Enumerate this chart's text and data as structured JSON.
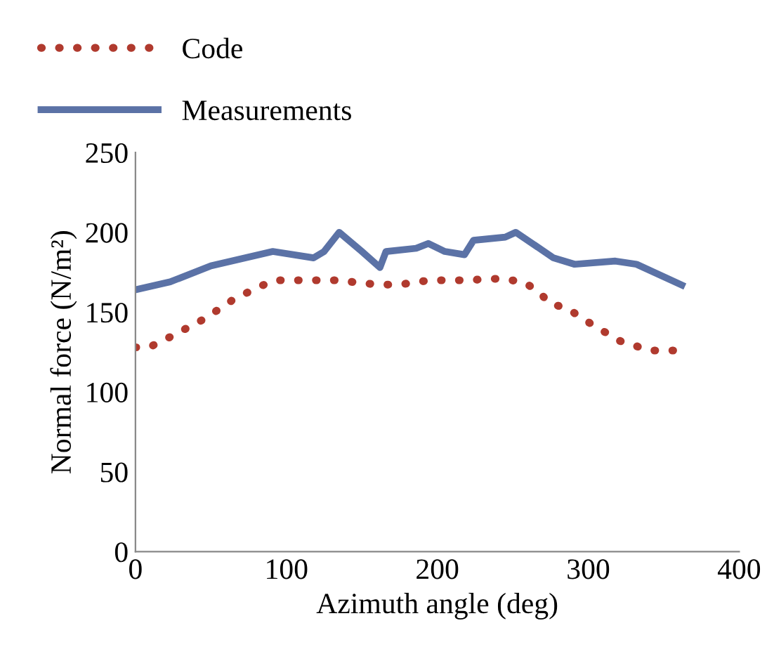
{
  "chart_data": {
    "type": "line",
    "xlabel": "Azimuth angle (deg)",
    "ylabel": "Normal force (N/m²)",
    "xlim": [
      0,
      400
    ],
    "xticks": [
      0,
      100,
      200,
      300,
      400
    ],
    "ylim": [
      0,
      250
    ],
    "yticks": [
      0,
      50,
      100,
      150,
      200,
      250
    ],
    "grid": false,
    "legend": "top left",
    "series": [
      {
        "name": "Code",
        "color": "#b03a2e",
        "line_style": "dotted",
        "x": [
          0,
          9,
          18,
          28,
          46,
          65,
          82,
          93,
          114,
          136,
          150,
          173,
          195,
          218,
          241,
          257,
          267,
          275,
          285,
          303,
          321,
          341,
          362
        ],
        "values": [
          128,
          128,
          132,
          137,
          146,
          158,
          166,
          170,
          170,
          170,
          168,
          167,
          170,
          170,
          171,
          169,
          163,
          155,
          153,
          142,
          132,
          126,
          126
        ]
      },
      {
        "name": "Measurements",
        "color": "#5b72a6",
        "line_style": "solid",
        "x": [
          0,
          23,
          50,
          91,
          118,
          125,
          135,
          150,
          162,
          166,
          186,
          194,
          205,
          218,
          224,
          245,
          252,
          277,
          291,
          318,
          332,
          362
        ],
        "values": [
          164,
          169,
          179,
          188,
          184,
          188,
          200,
          188,
          178,
          188,
          190,
          193,
          188,
          186,
          195,
          197,
          200,
          184,
          180,
          182,
          180,
          167
        ]
      }
    ]
  }
}
